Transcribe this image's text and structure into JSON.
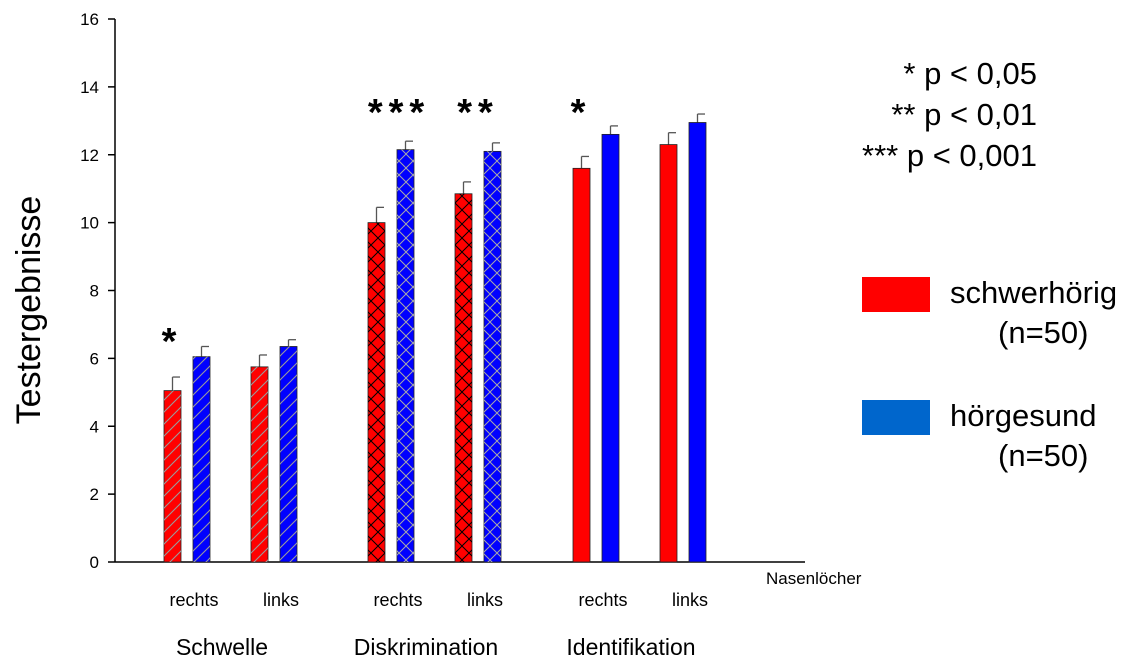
{
  "chart_data": {
    "type": "bar",
    "ylabel": "Testergebnisse",
    "ylim": [
      0,
      16
    ],
    "yticks": [
      0,
      2,
      4,
      6,
      8,
      10,
      12,
      14,
      16
    ],
    "x_axis_note": "Nasenlöcher",
    "groups": [
      {
        "label": "Schwelle",
        "pattern": "diagonal",
        "subgroups": [
          {
            "label": "rechts",
            "values": [
              5.05,
              6.05
            ],
            "errors": [
              0.4,
              0.3
            ],
            "significance": "*"
          },
          {
            "label": "links",
            "values": [
              5.75,
              6.35
            ],
            "errors": [
              0.35,
              0.2
            ],
            "significance": ""
          }
        ]
      },
      {
        "label": "Diskrimination",
        "pattern": "crosshatch",
        "subgroups": [
          {
            "label": "rechts",
            "values": [
              10.0,
              12.15
            ],
            "errors": [
              0.45,
              0.25
            ],
            "significance": "***"
          },
          {
            "label": "links",
            "values": [
              10.85,
              12.1
            ],
            "errors": [
              0.35,
              0.25
            ],
            "significance": "**"
          }
        ]
      },
      {
        "label": "Identifikation",
        "pattern": "solid",
        "subgroups": [
          {
            "label": "rechts",
            "values": [
              11.6,
              12.6
            ],
            "errors": [
              0.35,
              0.25
            ],
            "significance": "*"
          },
          {
            "label": "links",
            "values": [
              12.3,
              12.95
            ],
            "errors": [
              0.35,
              0.25
            ],
            "significance": ""
          }
        ]
      }
    ],
    "series": [
      {
        "name": "schwerhörig",
        "name_line2": "(n=50)",
        "color": "#ff0000",
        "bar_color": "#ff0000"
      },
      {
        "name": "hörgesund",
        "name_line2": "(n=50)",
        "color": "#0066cc",
        "bar_color": "#0000ff"
      }
    ],
    "significance_legend": [
      "* p < 0,05",
      "** p < 0,01",
      "*** p < 0,001"
    ],
    "legend_position": "right",
    "grid": false
  }
}
